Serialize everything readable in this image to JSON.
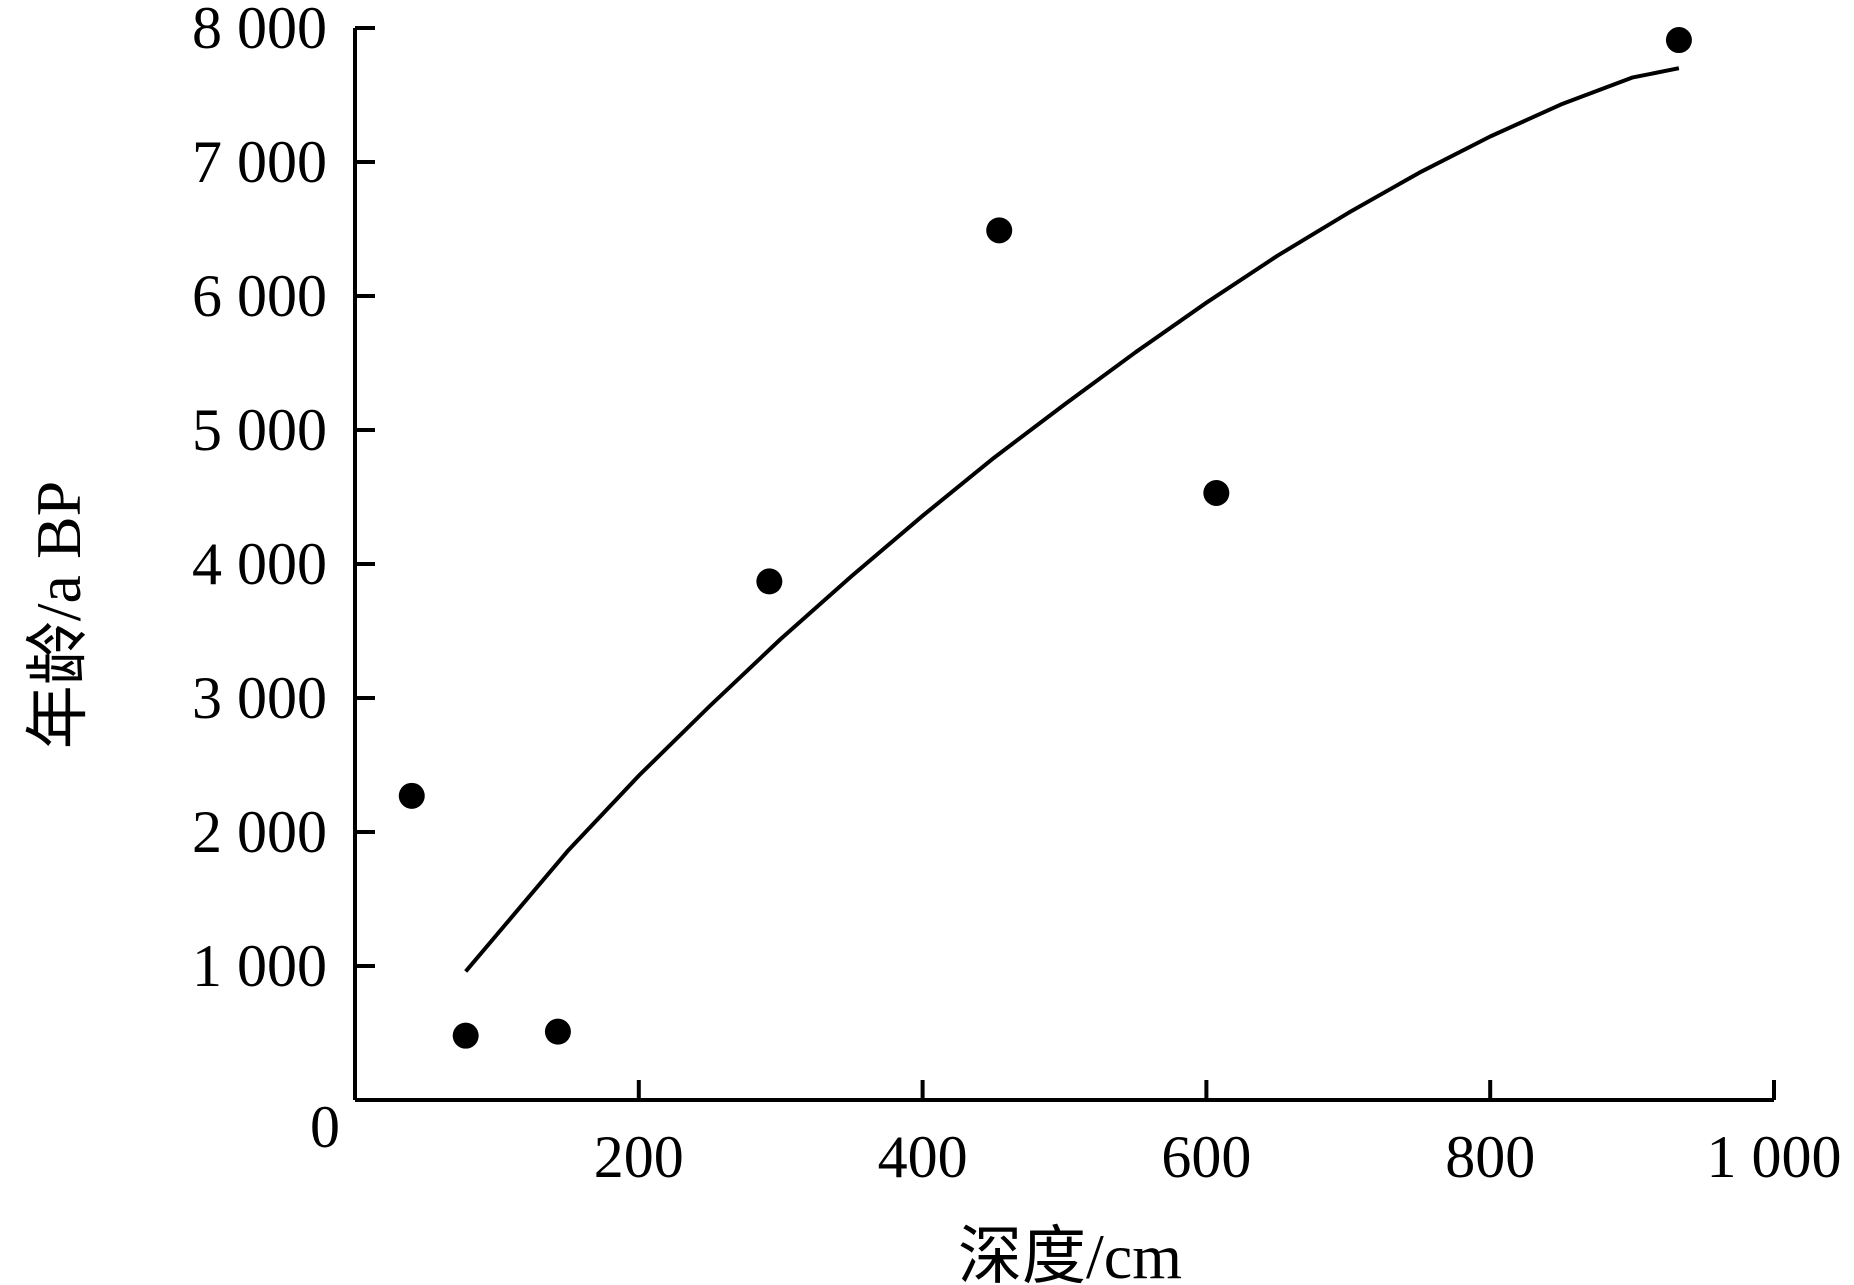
{
  "chart_data": {
    "type": "scatter",
    "title": "",
    "xlabel": "深度/cm",
    "ylabel": "年龄/a BP",
    "xlim": [
      0,
      1000
    ],
    "ylim": [
      0,
      8000
    ],
    "grid": false,
    "legend": "none",
    "origin_label": "0",
    "x_ticks": [
      200,
      400,
      600,
      800,
      1000
    ],
    "x_tick_labels": [
      "200",
      "400",
      "600",
      "800",
      "1 000"
    ],
    "y_ticks": [
      1000,
      2000,
      3000,
      4000,
      5000,
      6000,
      7000,
      8000
    ],
    "y_tick_labels": [
      "1 000",
      "2 000",
      "3 000",
      "4 000",
      "5 000",
      "6 000",
      "7 000",
      "8 000"
    ],
    "series": [
      {
        "type": "scatter",
        "x": [
          40,
          78,
          143,
          292,
          454,
          607,
          933
        ],
        "y": [
          2270,
          480,
          510,
          3870,
          6490,
          4530,
          7910
        ]
      },
      {
        "type": "line",
        "x": [
          78,
          150,
          200,
          250,
          300,
          350,
          400,
          450,
          500,
          550,
          600,
          650,
          700,
          750,
          800,
          850,
          900,
          933
        ],
        "y": [
          960,
          1860,
          2420,
          2940,
          3440,
          3910,
          4360,
          4790,
          5190,
          5580,
          5950,
          6300,
          6620,
          6920,
          7190,
          7430,
          7630,
          7700
        ]
      }
    ],
    "colors": {
      "axis": "#000000",
      "marker": "#000000",
      "line": "#000000"
    }
  }
}
